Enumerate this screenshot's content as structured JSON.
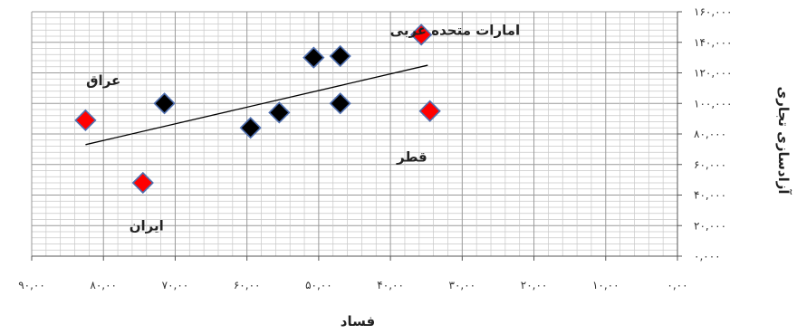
{
  "chart_data": {
    "type": "scatter",
    "title": "",
    "xlabel": "فساد",
    "ylabel": "آزادسازی تجاری",
    "x_reversed": true,
    "xlim": [
      0,
      90
    ],
    "ylim": [
      0,
      160000
    ],
    "x_ticks": [
      "۰,۰۰",
      "۱۰,۰۰",
      "۲۰,۰۰",
      "۳۰,۰۰",
      "۴۰,۰۰",
      "۵۰,۰۰",
      "۶۰,۰۰",
      "۷۰,۰۰",
      "۸۰,۰۰",
      "۹۰,۰۰"
    ],
    "y_ticks": [
      "۰,۰۰۰",
      "۲۰,۰۰۰",
      "۴۰,۰۰۰",
      "۶۰,۰۰۰",
      "۸۰,۰۰۰",
      "۱۰۰,۰۰۰",
      "۱۲۰,۰۰۰",
      "۱۴۰,۰۰۰",
      "۱۶۰,۰۰۰"
    ],
    "grid": true,
    "series": [
      {
        "color": "#ff0000",
        "points": [
          {
            "x": 82.5,
            "y": 89000
          },
          {
            "x": 74.5,
            "y": 48000
          },
          {
            "x": 35.7,
            "y": 145000
          },
          {
            "x": 34.5,
            "y": 95000
          }
        ]
      },
      {
        "color": "#000000",
        "points": [
          {
            "x": 71.5,
            "y": 100000
          },
          {
            "x": 59.5,
            "y": 84000
          },
          {
            "x": 55.5,
            "y": 94000
          },
          {
            "x": 50.7,
            "y": 130000
          },
          {
            "x": 47.0,
            "y": 131000
          },
          {
            "x": 47.0,
            "y": 100000
          }
        ]
      }
    ],
    "trendline": {
      "x_start": 82.5,
      "y_start": 73000,
      "x_end": 34.8,
      "y_end": 125000
    },
    "annotations": [
      {
        "text": "عراق",
        "x": 80,
        "y": 112000
      },
      {
        "text": "ایران",
        "x": 74,
        "y": 17000
      },
      {
        "text": "قطر",
        "x": 37,
        "y": 62000
      },
      {
        "text": "امارات متحده عربی",
        "x": 31,
        "y": 145000
      }
    ]
  }
}
